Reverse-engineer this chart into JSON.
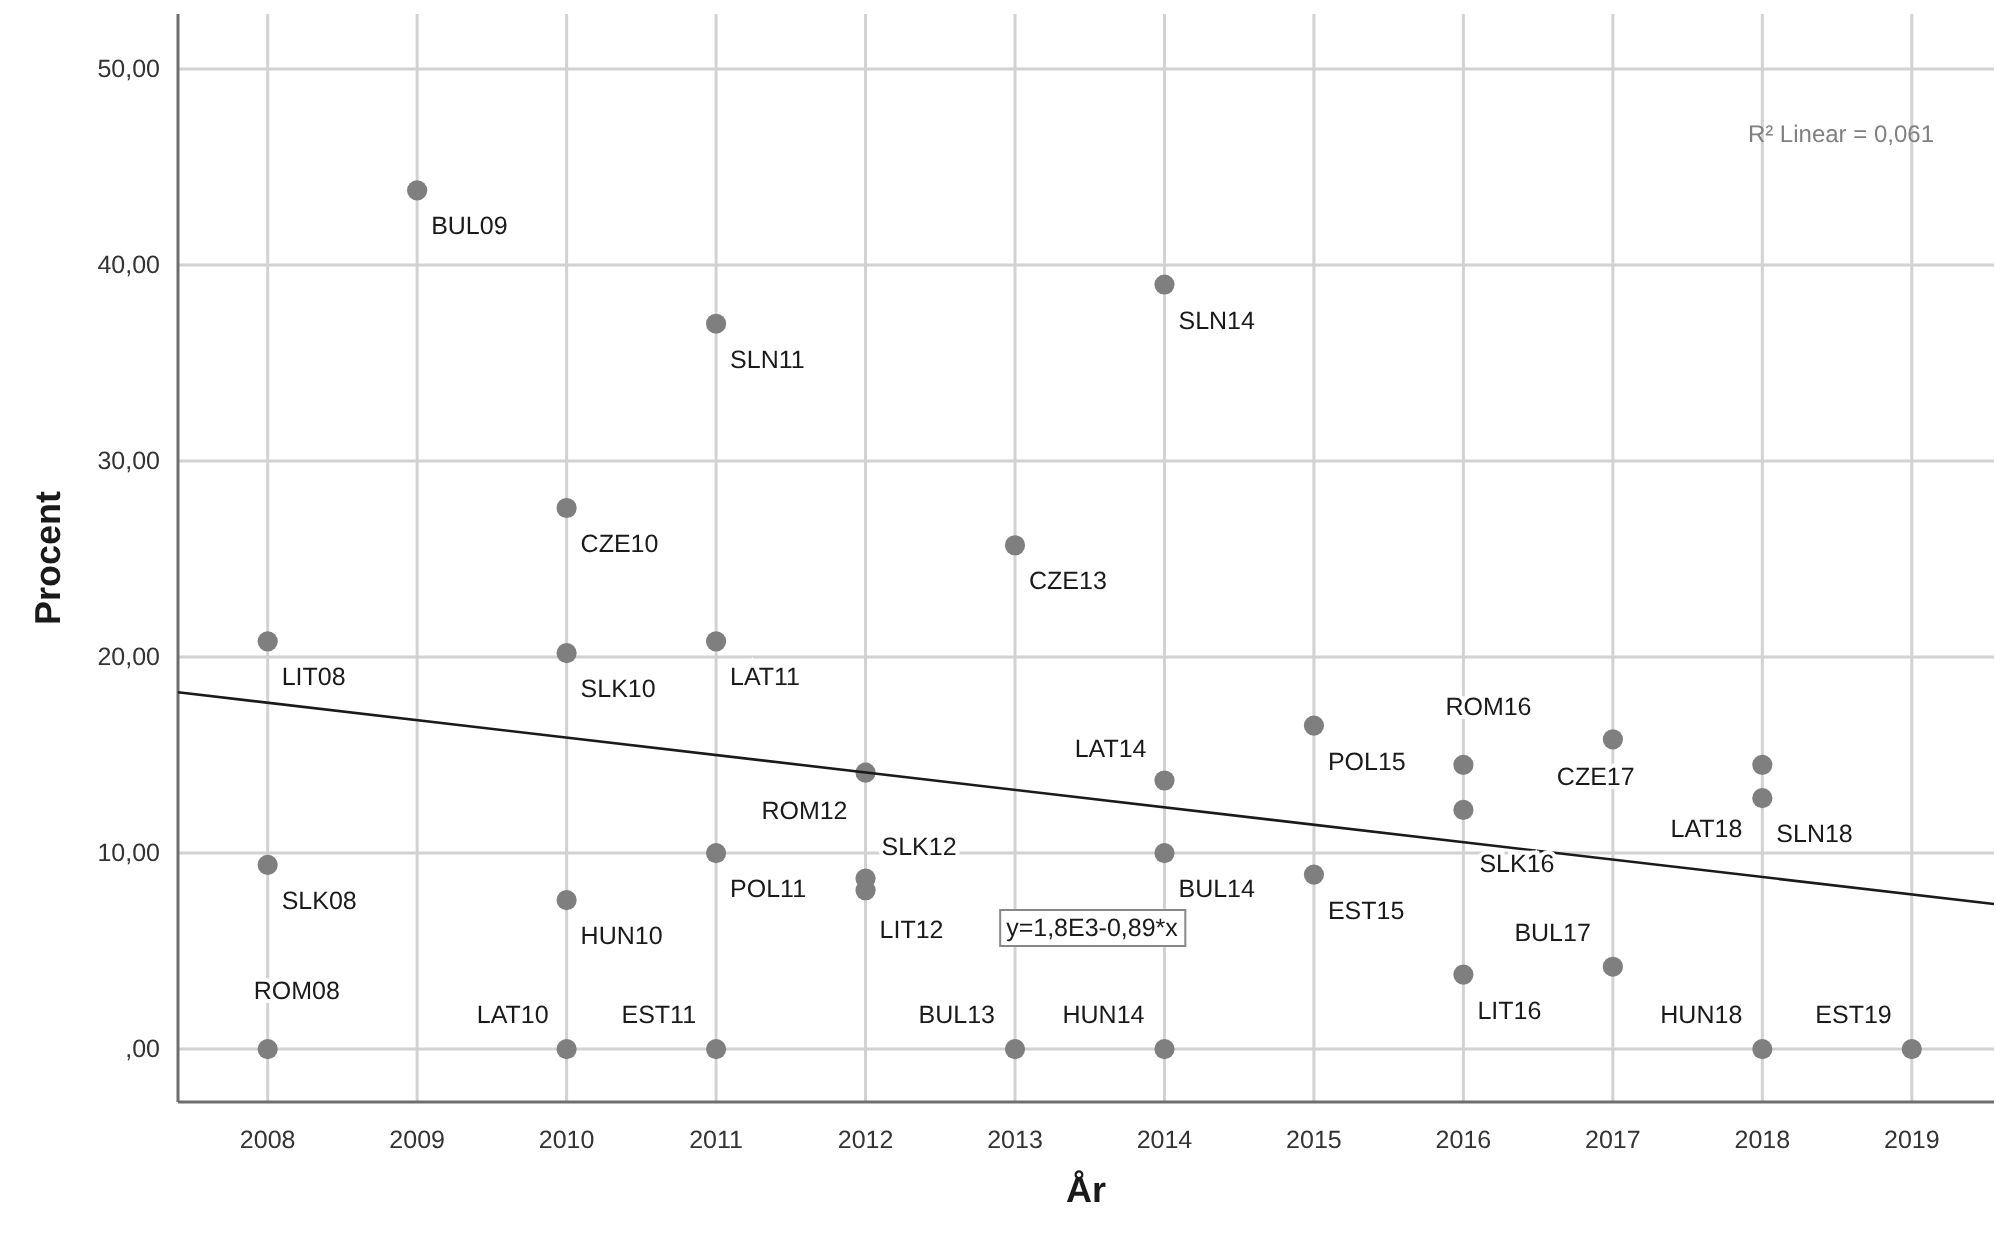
{
  "chart_data": {
    "type": "scatter",
    "xlabel": "År",
    "ylabel": "Procent",
    "xlim": [
      2007.4,
      2019.55
    ],
    "ylim": [
      -2.7,
      52.8
    ],
    "xticks": [
      2008,
      2009,
      2010,
      2011,
      2012,
      2013,
      2014,
      2015,
      2016,
      2017,
      2018,
      2019
    ],
    "yticks": [
      {
        "value": 0,
        "label": ",00"
      },
      {
        "value": 10,
        "label": "10,00"
      },
      {
        "value": 20,
        "label": "20,00"
      },
      {
        "value": 30,
        "label": "30,00"
      },
      {
        "value": 40,
        "label": "40,00"
      },
      {
        "value": 50,
        "label": "50,00"
      }
    ],
    "grid": true,
    "series": [
      {
        "color": "#7f7f7f",
        "marker": "circle",
        "x": [
          2008,
          2008,
          2008,
          2009,
          2010,
          2010,
          2010,
          2010,
          2011,
          2011,
          2011,
          2011,
          2012,
          2012,
          2012,
          2013,
          2013,
          2014,
          2014,
          2014,
          2014,
          2015,
          2015,
          2016,
          2016,
          2016,
          2017,
          2017,
          2018,
          2018,
          2018,
          2019
        ],
        "values": [
          20.8,
          9.4,
          0,
          43.8,
          27.6,
          20.2,
          7.6,
          0,
          37.0,
          20.8,
          10.0,
          0,
          14.1,
          8.7,
          8.1,
          25.7,
          0,
          39.0,
          13.7,
          10.0,
          0,
          16.5,
          8.9,
          14.5,
          12.2,
          3.8,
          15.8,
          4.2,
          14.5,
          12.8,
          0,
          0
        ]
      },
      {
        "type": "line",
        "color": "#1a1a1a",
        "marker": "none",
        "x": [
          2007.4,
          2019.55
        ],
        "values": [
          18.2,
          7.4
        ]
      }
    ],
    "annotations": [
      {
        "text": "LIT08",
        "x": 2008,
        "y": 20.8
      },
      {
        "text": "SLK08",
        "x": 2008,
        "y": 9.4
      },
      {
        "text": "ROM08",
        "x": 2008,
        "y": 0
      },
      {
        "text": "BUL09",
        "x": 2009,
        "y": 43.8
      },
      {
        "text": "CZE10",
        "x": 2010,
        "y": 27.6
      },
      {
        "text": "SLK10",
        "x": 2010,
        "y": 20.2
      },
      {
        "text": "HUN10",
        "x": 2010,
        "y": 7.6
      },
      {
        "text": "LAT10",
        "x": 2010,
        "y": 0
      },
      {
        "text": "SLN11",
        "x": 2011,
        "y": 37.0
      },
      {
        "text": "LAT11",
        "x": 2011,
        "y": 20.8
      },
      {
        "text": "POL11",
        "x": 2011,
        "y": 10.0
      },
      {
        "text": "EST11",
        "x": 2011,
        "y": 0
      },
      {
        "text": "ROM12",
        "x": 2012,
        "y": 14.1
      },
      {
        "text": "SLK12",
        "x": 2012,
        "y": 8.7
      },
      {
        "text": "LIT12",
        "x": 2012,
        "y": 8.1
      },
      {
        "text": "CZE13",
        "x": 2013,
        "y": 25.7
      },
      {
        "text": "BUL13",
        "x": 2013,
        "y": 0
      },
      {
        "text": "SLN14",
        "x": 2014,
        "y": 39.0
      },
      {
        "text": "LAT14",
        "x": 2014,
        "y": 13.7
      },
      {
        "text": "BUL14",
        "x": 2014,
        "y": 10.0
      },
      {
        "text": "HUN14",
        "x": 2014,
        "y": 0
      },
      {
        "text": "POL15",
        "x": 2015,
        "y": 16.5
      },
      {
        "text": "EST15",
        "x": 2015,
        "y": 8.9
      },
      {
        "text": "ROM16",
        "x": 2016,
        "y": 14.5
      },
      {
        "text": "SLK16",
        "x": 2016,
        "y": 12.2
      },
      {
        "text": "LIT16",
        "x": 2016,
        "y": 3.8
      },
      {
        "text": "CZE17",
        "x": 2017,
        "y": 15.8
      },
      {
        "text": "BUL17",
        "x": 2017,
        "y": 4.2
      },
      {
        "text": "LAT18",
        "x": 2018,
        "y": 14.5
      },
      {
        "text": "SLN18",
        "x": 2018,
        "y": 12.8
      },
      {
        "text": "HUN18",
        "x": 2018,
        "y": 0
      },
      {
        "text": "EST19",
        "x": 2019,
        "y": 0
      },
      "R² Linear = 0,061",
      "y=1,8E3-0,89*x"
    ]
  }
}
